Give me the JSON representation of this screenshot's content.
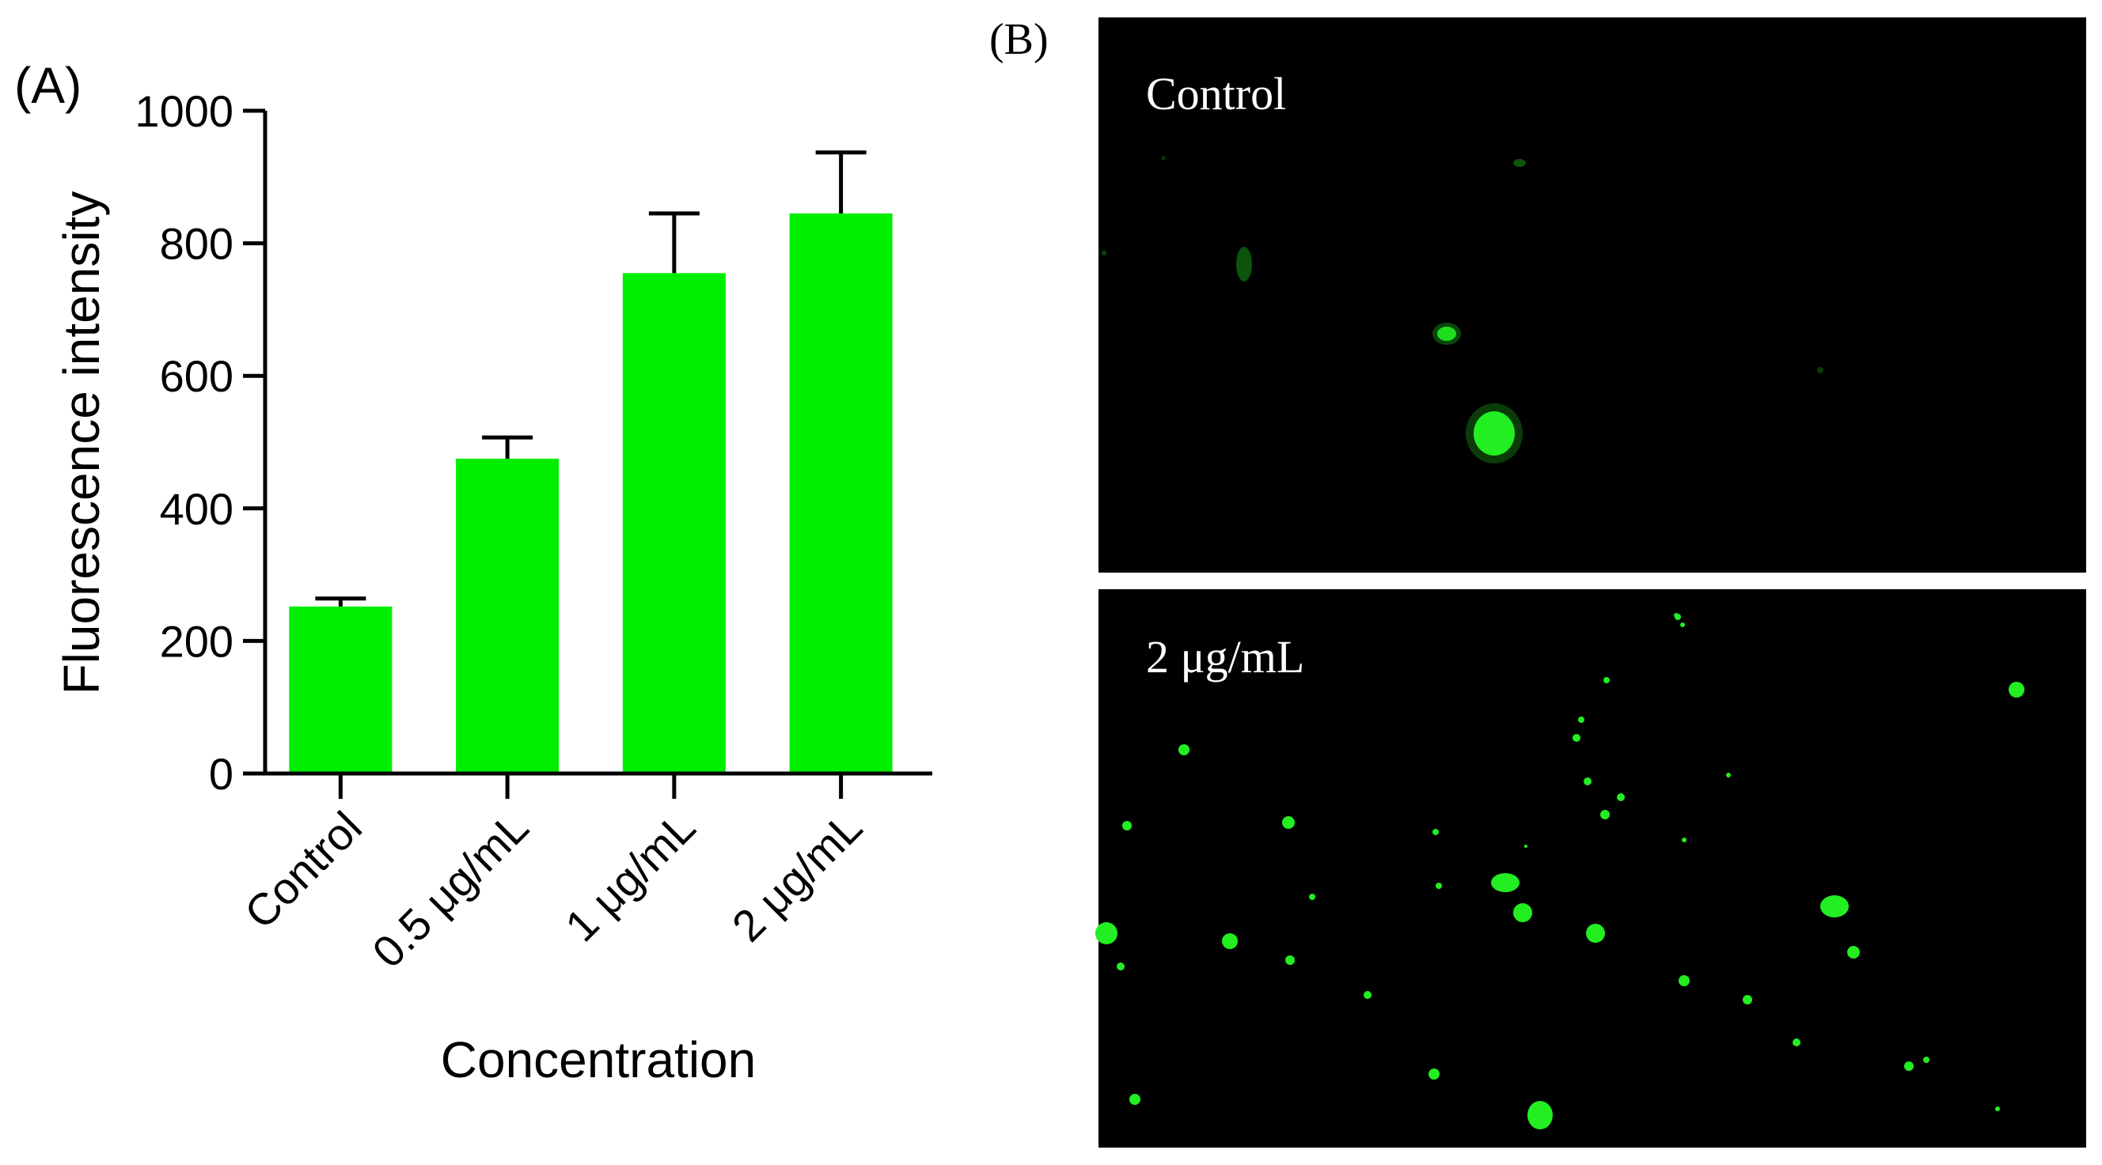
{
  "panel_a_label": "(A)",
  "panel_b_label": "(B)",
  "chart_data": {
    "type": "bar",
    "categories": [
      "Control",
      "0.5 μg/mL",
      "1 μg/mL",
      "2 μg/mL"
    ],
    "values": [
      252,
      475,
      755,
      845
    ],
    "errors": [
      12,
      32,
      90,
      92
    ],
    "xlabel": "Concentration",
    "ylabel": "Fluorescence intensity",
    "ylim": [
      0,
      1000
    ],
    "yticks": [
      0,
      200,
      400,
      600,
      800,
      1000
    ],
    "bar_color": "#00ee00",
    "error_bars": "upper",
    "grid": false
  },
  "micrographs": [
    {
      "label": "Control"
    },
    {
      "label": "2 μg/mL"
    }
  ],
  "colors": {
    "micrograph_background": "#000000",
    "fluorescence": "#22ee22"
  }
}
